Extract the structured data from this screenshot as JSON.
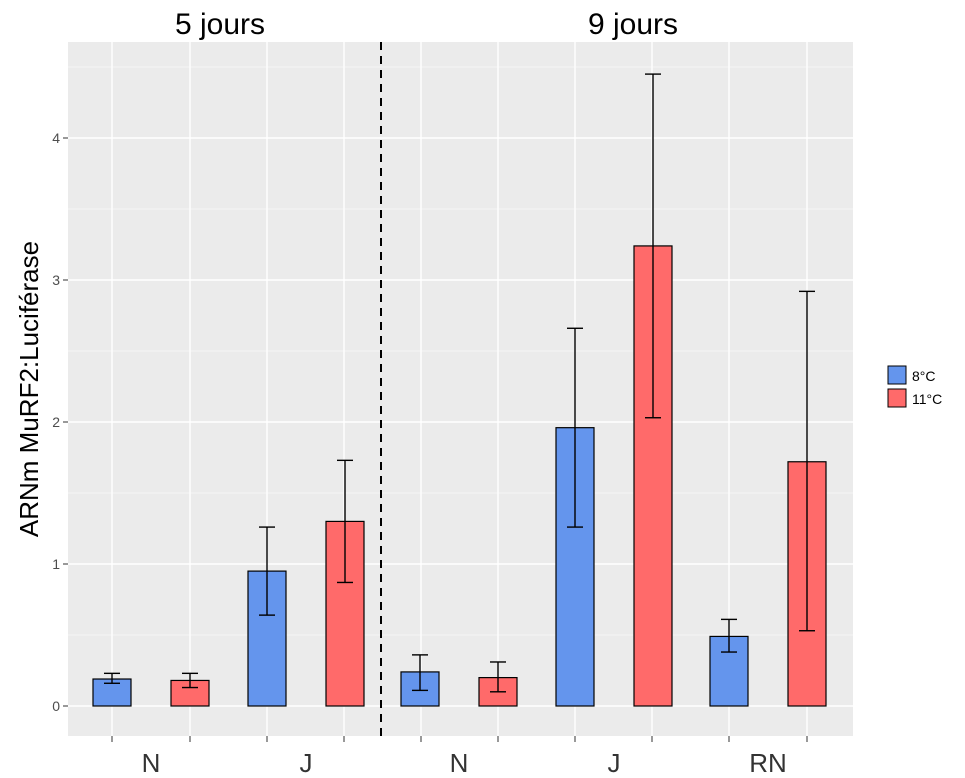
{
  "chart_data": {
    "type": "bar",
    "ylabel": "ARNm MuRF2:Luciférase",
    "xlabel": "",
    "ylim": [
      -0.2,
      4.7
    ],
    "y_ticks": [
      "0",
      "1",
      "2",
      "3",
      "4"
    ],
    "grid": true,
    "legend_position": "right",
    "colors": {
      "8°C": "#6495ED",
      "11°C": "#FF6A6A",
      "panel": "#EBEBEB",
      "grid": "#ffffff"
    },
    "groups": [
      {
        "title": "5 jours",
        "categories": [
          "N",
          "J"
        ]
      },
      {
        "title": "9 jours",
        "categories": [
          "N",
          "J",
          "RN"
        ]
      }
    ],
    "categories": [
      "N",
      "J",
      "N",
      "J",
      "RN"
    ],
    "series": [
      {
        "name": "8°C",
        "values": [
          0.19,
          0.95,
          0.24,
          1.96,
          0.49
        ],
        "error_low": [
          0.16,
          0.64,
          0.11,
          1.26,
          0.38
        ],
        "error_high": [
          0.23,
          1.26,
          0.36,
          2.66,
          0.61
        ]
      },
      {
        "name": "11°C",
        "values": [
          0.18,
          1.3,
          0.2,
          3.24,
          1.72
        ],
        "error_low": [
          0.13,
          0.87,
          0.1,
          2.03,
          0.53
        ],
        "error_high": [
          0.23,
          1.73,
          0.31,
          4.45,
          2.92
        ]
      }
    ]
  }
}
